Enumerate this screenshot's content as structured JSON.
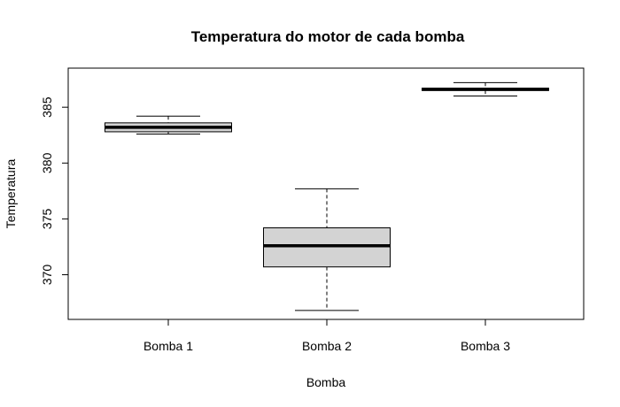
{
  "chart_data": {
    "type": "boxplot",
    "title": "Temperatura do motor de cada bomba",
    "xlabel": "Bomba",
    "ylabel": "Temperatura",
    "ylim": [
      366.0,
      388.5
    ],
    "yticks": [
      370,
      375,
      380,
      385
    ],
    "categories": [
      "Bomba 1",
      "Bomba 2",
      "Bomba 3"
    ],
    "boxes": [
      {
        "name": "Bomba 1",
        "whisker_low": 382.6,
        "q1": 382.8,
        "median": 383.2,
        "q3": 383.6,
        "whisker_high": 384.2
      },
      {
        "name": "Bomba 2",
        "whisker_low": 366.8,
        "q1": 370.7,
        "median": 372.6,
        "q3": 374.2,
        "whisker_high": 377.7
      },
      {
        "name": "Bomba 3",
        "whisker_low": 386.0,
        "q1": 386.5,
        "median": 386.6,
        "q3": 386.7,
        "whisker_high": 387.2
      }
    ],
    "box_fill": "#d3d3d3",
    "line_color": "#000000"
  }
}
